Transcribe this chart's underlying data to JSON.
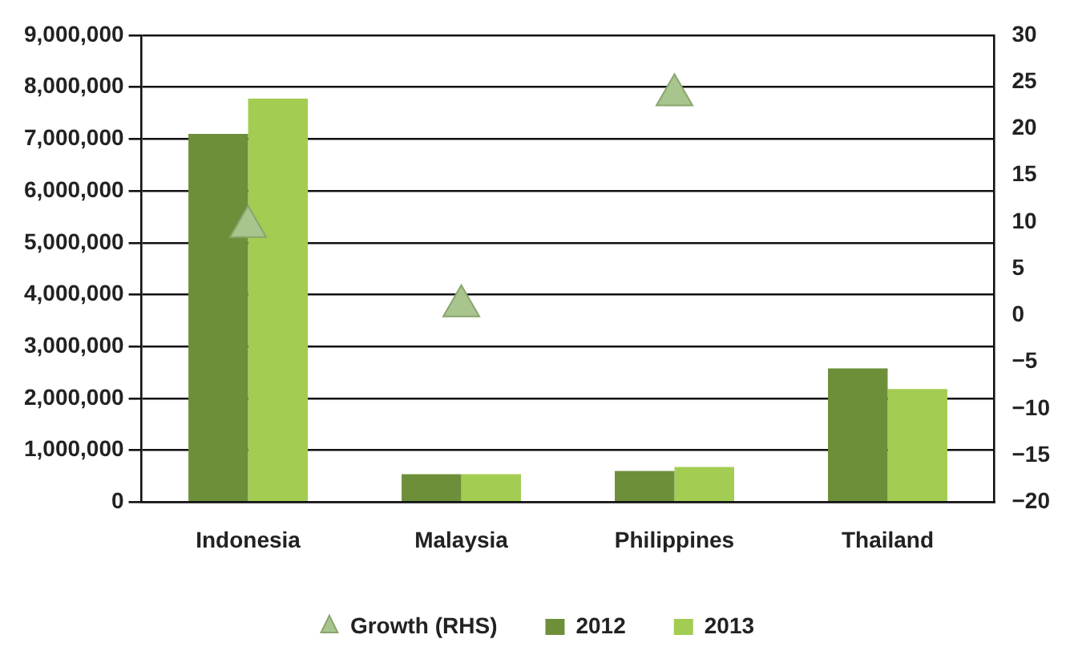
{
  "chart_data": {
    "type": "bar",
    "categories": [
      "Indonesia",
      "Malaysia",
      "Philippines",
      "Thailand"
    ],
    "series": [
      {
        "name": "2012",
        "color": "#6e8f3a",
        "values": [
          7100000,
          540000,
          600000,
          2580000
        ]
      },
      {
        "name": "2013",
        "color": "#a3cc52",
        "values": [
          7780000,
          540000,
          680000,
          2180000
        ]
      },
      {
        "name": "Growth (RHS)",
        "type": "scatter",
        "axis": "y2",
        "marker": "triangle",
        "color": "#a9c58e",
        "values": [
          9.5,
          1,
          23.6,
          null
        ]
      }
    ],
    "ylim": [
      0,
      9000000
    ],
    "yticks": [
      {
        "value": 0,
        "label": "0"
      },
      {
        "value": 1000000,
        "label": "1,000,000"
      },
      {
        "value": 2000000,
        "label": "2,000,000"
      },
      {
        "value": 3000000,
        "label": "3,000,000"
      },
      {
        "value": 4000000,
        "label": "4,000,000"
      },
      {
        "value": 5000000,
        "label": "5,000,000"
      },
      {
        "value": 6000000,
        "label": "6,000,000"
      },
      {
        "value": 7000000,
        "label": "7,000,000"
      },
      {
        "value": 8000000,
        "label": "8,000,000"
      },
      {
        "value": 9000000,
        "label": "9,000,000"
      }
    ],
    "y2lim": [
      -20,
      30
    ],
    "y2ticks": [
      {
        "value": -20,
        "label": "−20"
      },
      {
        "value": -15,
        "label": "−15"
      },
      {
        "value": -10,
        "label": "−10"
      },
      {
        "value": -5,
        "label": "−5"
      },
      0,
      5,
      10,
      15,
      20,
      25,
      30
    ],
    "grid": "y",
    "legend": "bottom"
  }
}
